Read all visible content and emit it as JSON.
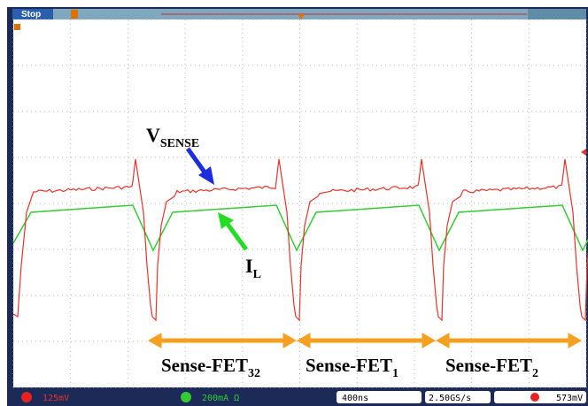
{
  "top_bar": {
    "status": "Stop"
  },
  "annotations": {
    "vsense": {
      "main": "V",
      "sub": "SENSE"
    },
    "il": {
      "main": "I",
      "sub": "L"
    },
    "phases": [
      {
        "main": "Sense-FET",
        "sub": "32"
      },
      {
        "main": "Sense-FET",
        "sub": "1"
      },
      {
        "main": "Sense-FET",
        "sub": "2"
      }
    ]
  },
  "bottom_bar": {
    "ch1_scale": "125mV",
    "ch3_scale": "200mA Ω",
    "timebase": "400ns",
    "sample_rate": "2.50GS/s",
    "trigger_level": "573mV"
  }
}
